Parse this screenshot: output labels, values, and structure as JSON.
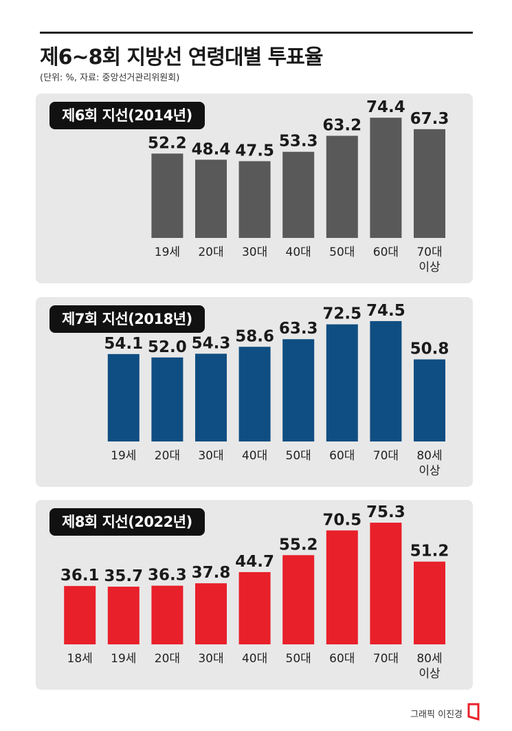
{
  "title": "제6~8회 지방선 연령대별 투표율",
  "subtitle": "(단위: %, 자료: 중앙선거관리위원회)",
  "credit": "그래픽 이진경",
  "chart_data": [
    {
      "type": "bar",
      "title": "제6회 지선(2014년)",
      "categories": [
        "19세",
        "20대",
        "30대",
        "40대",
        "50대",
        "60대",
        "70대\n이상"
      ],
      "values": [
        52.2,
        48.4,
        47.5,
        53.3,
        63.2,
        74.4,
        67.3
      ],
      "color": "#595959",
      "xlabel": "",
      "ylabel": "",
      "grid": false
    },
    {
      "type": "bar",
      "title": "제7회 지선(2018년)",
      "categories": [
        "19세",
        "20대",
        "30대",
        "40대",
        "50대",
        "60대",
        "70대",
        "80세\n이상"
      ],
      "values": [
        54.1,
        52.0,
        54.3,
        58.6,
        63.3,
        72.5,
        74.5,
        50.8
      ],
      "color": "#0f4e82",
      "xlabel": "",
      "ylabel": "",
      "grid": false
    },
    {
      "type": "bar",
      "title": "제8회 지선(2022년)",
      "categories": [
        "18세",
        "19세",
        "20대",
        "30대",
        "40대",
        "50대",
        "60대",
        "70대",
        "80세\n이상"
      ],
      "values": [
        36.1,
        35.7,
        36.3,
        37.8,
        44.7,
        55.2,
        70.5,
        75.3,
        51.2
      ],
      "color": "#e8202a",
      "xlabel": "",
      "ylabel": "",
      "grid": false
    }
  ]
}
